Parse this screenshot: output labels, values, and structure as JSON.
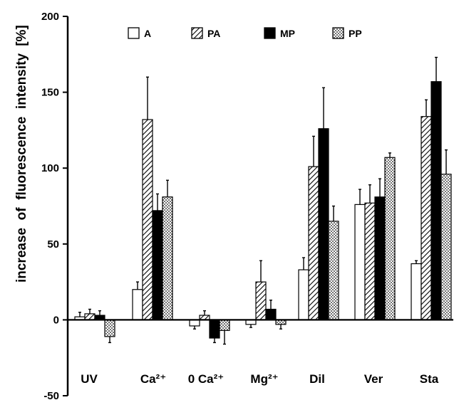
{
  "chart_data": {
    "type": "bar",
    "title": "",
    "xlabel": "",
    "ylabel": "increase  of  fluorescence  intensity",
    "yunit": "[%]",
    "ylim": [
      -50,
      200
    ],
    "yticks": [
      "200",
      "150",
      "100",
      "50",
      "0",
      "-50"
    ],
    "ytick_values": [
      200,
      150,
      100,
      50,
      0,
      -50
    ],
    "grid": false,
    "legend_position": "top",
    "categories": [
      "UV",
      "Ca²⁺",
      "0 Ca²⁺",
      "Mg²⁺",
      "Dil",
      "Ver",
      "Sta"
    ],
    "series": [
      {
        "name": "A",
        "pattern": "open",
        "values": [
          2,
          20,
          -4,
          -3,
          33,
          76,
          37
        ],
        "errors": [
          3,
          5,
          2,
          2,
          8,
          10,
          2
        ]
      },
      {
        "name": "PA",
        "pattern": "hatched",
        "values": [
          4,
          132,
          3,
          25,
          101,
          77,
          134
        ],
        "errors": [
          3,
          28,
          3,
          14,
          20,
          12,
          11
        ]
      },
      {
        "name": "MP",
        "pattern": "solid",
        "values": [
          3,
          72,
          -12,
          7,
          126,
          81,
          157
        ],
        "errors": [
          3,
          11,
          3,
          6,
          27,
          12,
          16
        ]
      },
      {
        "name": "PP",
        "pattern": "dotted",
        "values": [
          -11,
          81,
          -7,
          -3,
          65,
          107,
          96
        ],
        "errors": [
          4,
          11,
          9,
          3,
          10,
          3,
          16
        ]
      }
    ]
  }
}
